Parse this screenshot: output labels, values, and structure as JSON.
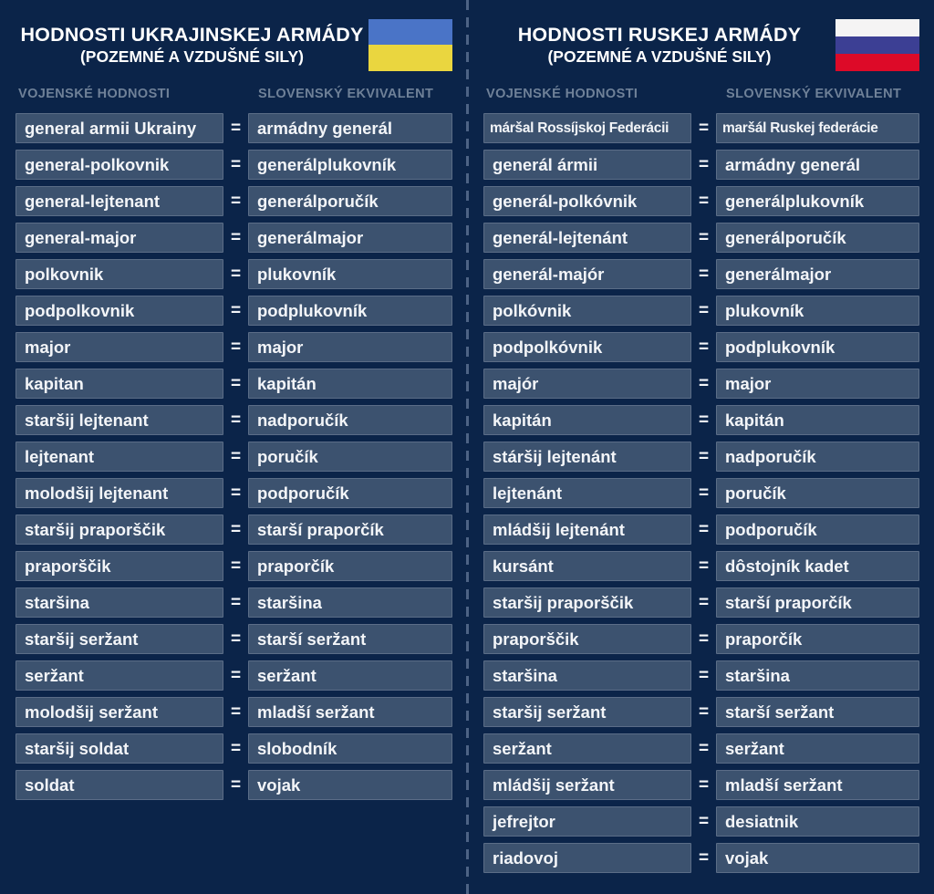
{
  "equals_sign": "=",
  "colors": {
    "background": "#0b2449",
    "box_fill": "#3c526f",
    "box_border": "#5b6d87",
    "column_header_text": "#6f8198",
    "divider": "#4d6385",
    "text": "#f3f5f8",
    "ukraine_flag": [
      "#4a74c7",
      "#ead63f"
    ],
    "russia_flag": [
      "#f5f4f4",
      "#3c3f94",
      "#dd0a28"
    ]
  },
  "panels": {
    "ukraine": {
      "title": "HODNOSTI UKRAJINSKEJ ARMÁDY",
      "subtitle": "(POZEMNÉ A VZDUŠNÉ SILY)",
      "columns": {
        "ranks": "VOJENSKÉ HODNOSTI",
        "equivalent": "SLOVENSKÝ EKVIVALENT"
      },
      "rows": [
        {
          "rank": "general armii Ukrainy",
          "equivalent": "armádny generál"
        },
        {
          "rank": "general-polkovnik",
          "equivalent": "generálplukovník"
        },
        {
          "rank": "general-lejtenant",
          "equivalent": "generálporučík"
        },
        {
          "rank": "general-major",
          "equivalent": "generálmajor"
        },
        {
          "rank": "polkovnik",
          "equivalent": "plukovník"
        },
        {
          "rank": "podpolkovnik",
          "equivalent": "podplukovník"
        },
        {
          "rank": "major",
          "equivalent": "major"
        },
        {
          "rank": "kapitan",
          "equivalent": "kapitán"
        },
        {
          "rank": "staršij lejtenant",
          "equivalent": "nadporučík"
        },
        {
          "rank": "lejtenant",
          "equivalent": "poručík"
        },
        {
          "rank": "molodšij lejtenant",
          "equivalent": "podporučík"
        },
        {
          "rank": "staršij praporščik",
          "equivalent": "starší praporčík"
        },
        {
          "rank": "praporščik",
          "equivalent": "praporčík"
        },
        {
          "rank": "staršina",
          "equivalent": "staršina"
        },
        {
          "rank": "staršij seržant",
          "equivalent": "starší seržant"
        },
        {
          "rank": "seržant",
          "equivalent": "seržant"
        },
        {
          "rank": "molodšij seržant",
          "equivalent": "mladší seržant"
        },
        {
          "rank": "staršij soldat",
          "equivalent": "slobodník"
        },
        {
          "rank": "soldat",
          "equivalent": "vojak"
        }
      ]
    },
    "russia": {
      "title": "HODNOSTI RUSKEJ ARMÁDY",
      "subtitle": "(POZEMNÉ A VZDUŠNÉ SILY)",
      "columns": {
        "ranks": "VOJENSKÉ HODNOSTI",
        "equivalent": "SLOVENSKÝ EKVIVALENT"
      },
      "rows": [
        {
          "rank": "máršal Rossíjskoj Federácii",
          "equivalent": "maršál Ruskej federácie"
        },
        {
          "rank": "generál ármii",
          "equivalent": "armádny generál"
        },
        {
          "rank": "generál-polkóvnik",
          "equivalent": "generálplukovník"
        },
        {
          "rank": "generál-lejtenánt",
          "equivalent": "generálporučík"
        },
        {
          "rank": "generál-majór",
          "equivalent": "generálmajor"
        },
        {
          "rank": "polkóvnik",
          "equivalent": "plukovník"
        },
        {
          "rank": "podpolkóvnik",
          "equivalent": "podplukovník"
        },
        {
          "rank": "majór",
          "equivalent": "major"
        },
        {
          "rank": "kapitán",
          "equivalent": "kapitán"
        },
        {
          "rank": "stáršij lejtenánt",
          "equivalent": "nadporučík"
        },
        {
          "rank": "lejtenánt",
          "equivalent": "poručík"
        },
        {
          "rank": "mládšij lejtenánt",
          "equivalent": "podporučík"
        },
        {
          "rank": "kursánt",
          "equivalent": "dôstojník kadet"
        },
        {
          "rank": "staršij praporščik",
          "equivalent": "starší praporčík"
        },
        {
          "rank": "praporščik",
          "equivalent": "praporčík"
        },
        {
          "rank": "staršina",
          "equivalent": "staršina"
        },
        {
          "rank": "staršij seržant",
          "equivalent": "starší seržant"
        },
        {
          "rank": "seržant",
          "equivalent": "seržant"
        },
        {
          "rank": "mládšij seržant",
          "equivalent": "mladší seržant"
        },
        {
          "rank": "jefrejtor",
          "equivalent": "desiatnik"
        },
        {
          "rank": "riadovoj",
          "equivalent": "vojak"
        }
      ]
    }
  }
}
